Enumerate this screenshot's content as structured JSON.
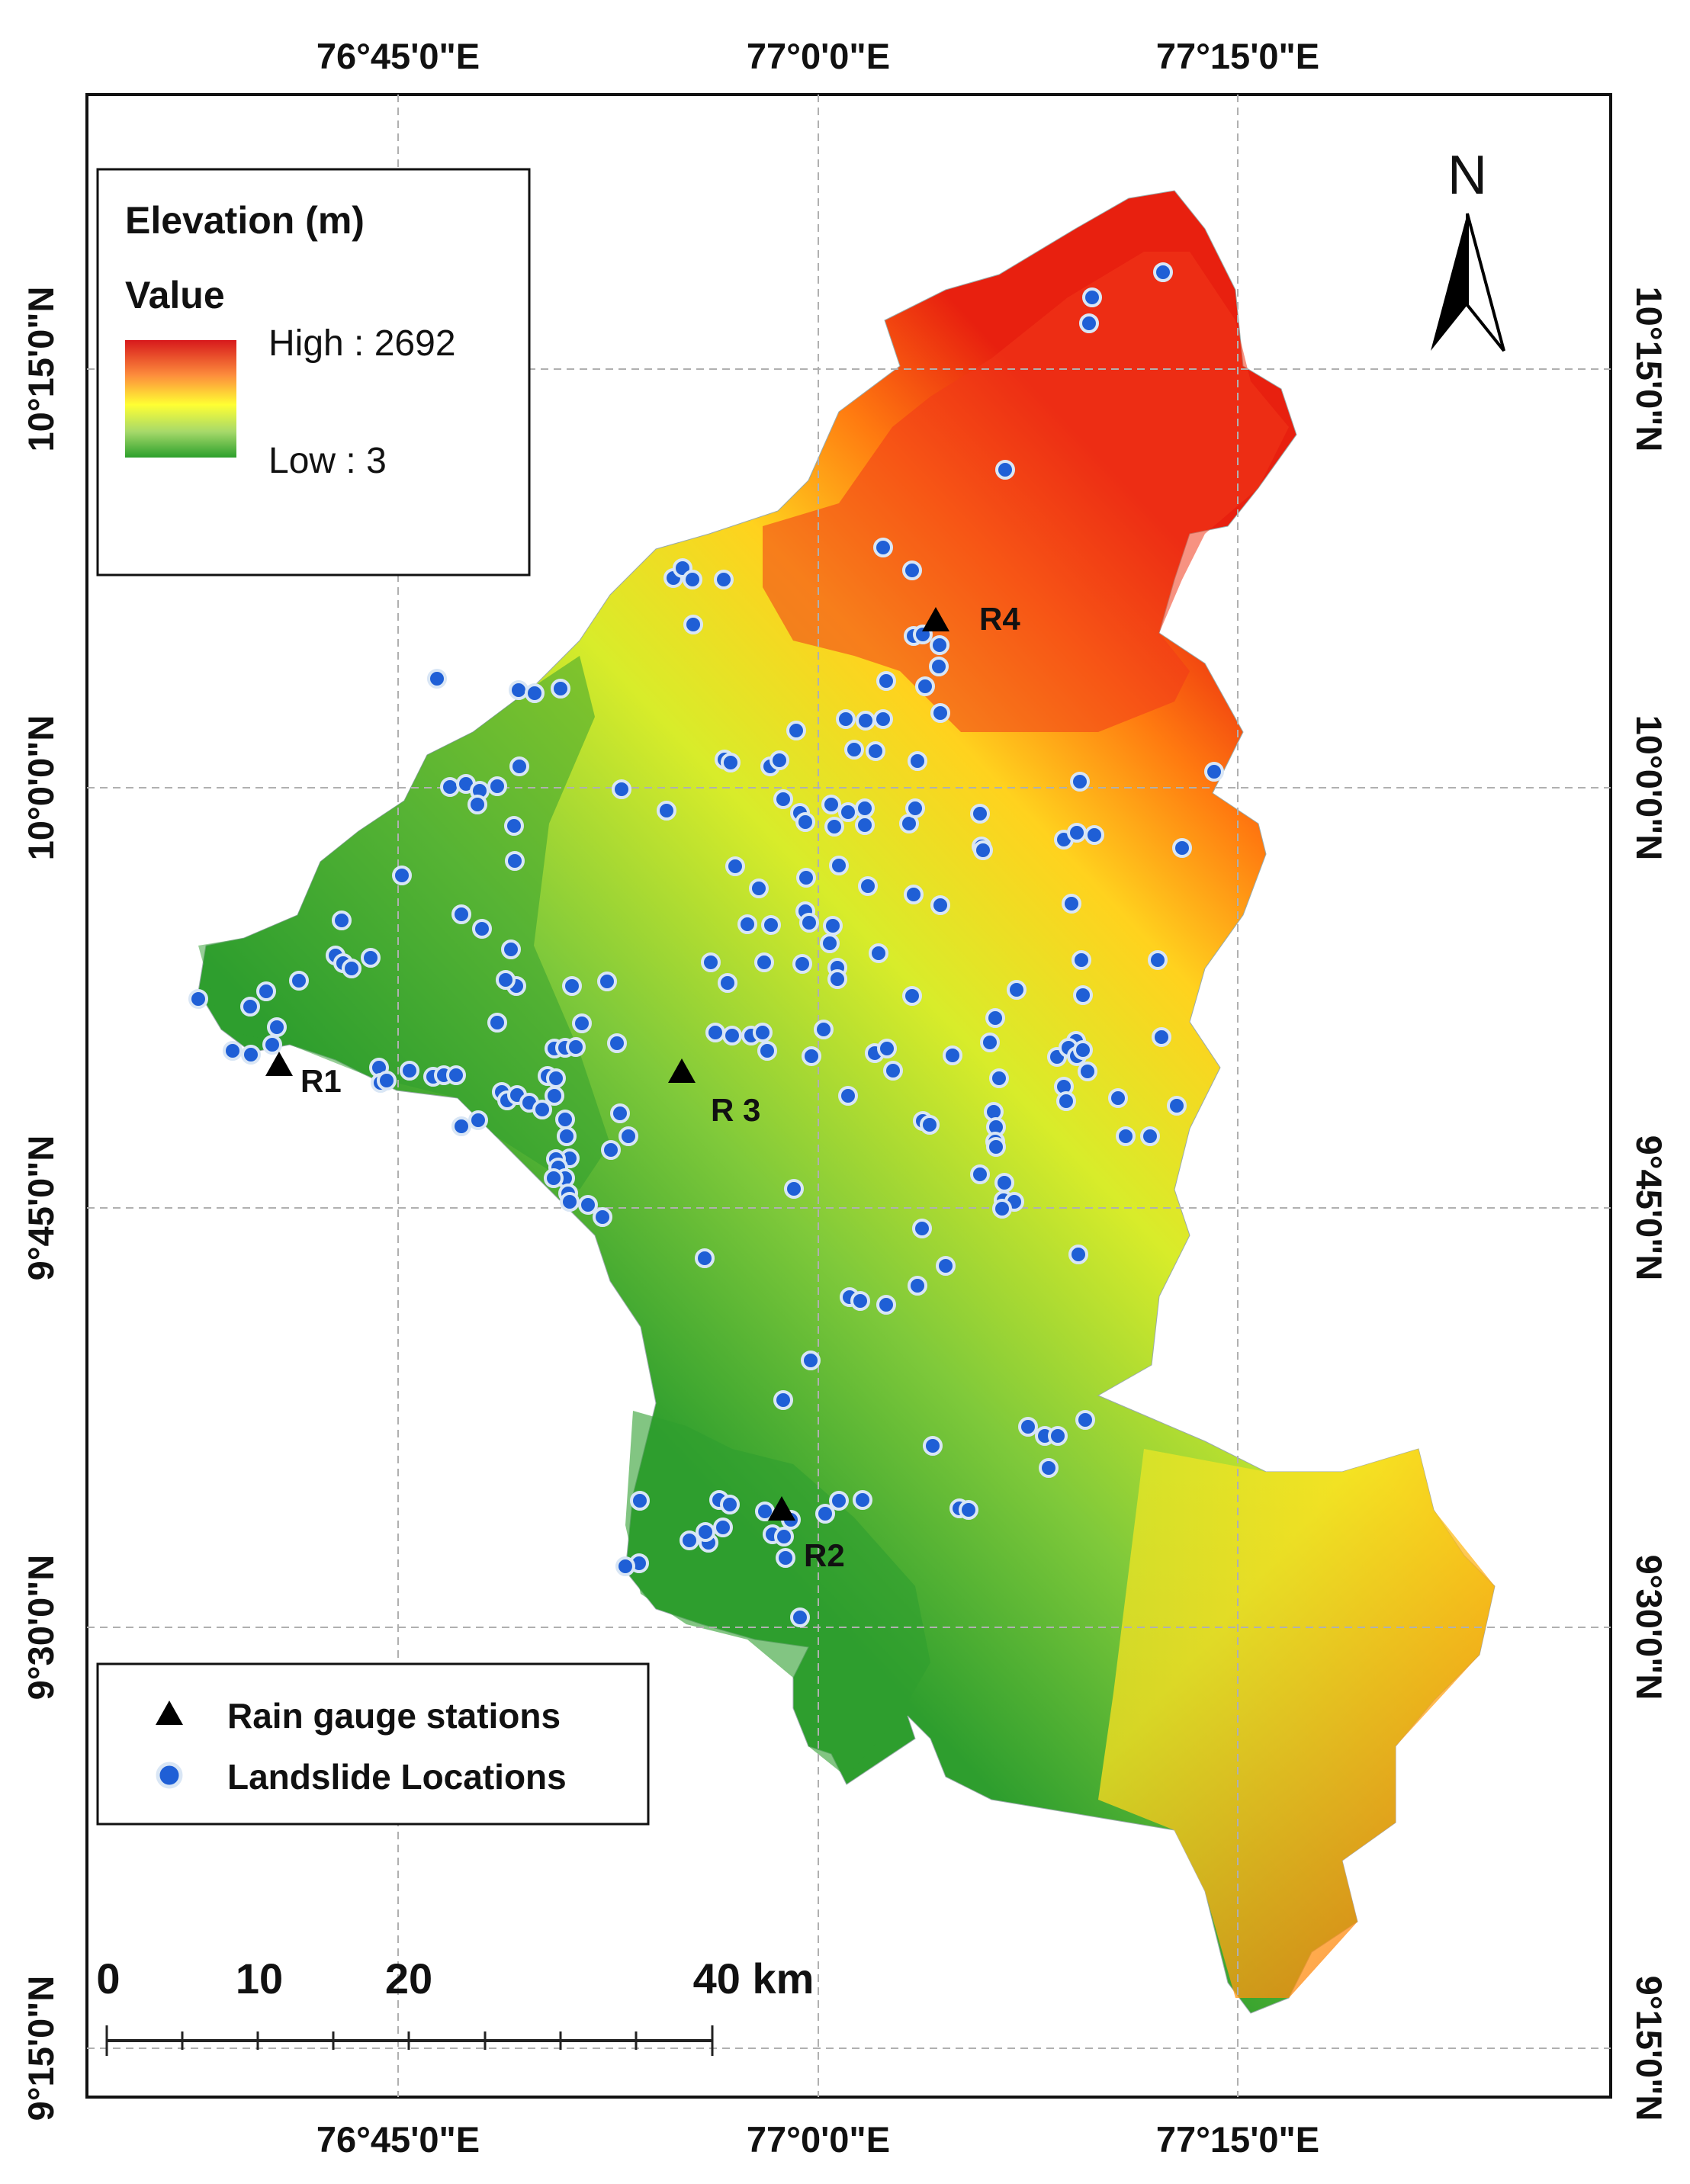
{
  "map": {
    "graticule": {
      "top_longitude_labels": [
        "76°45'0\"E",
        "77°0'0\"E",
        "77°15'0\"E"
      ],
      "bottom_longitude_labels": [
        "76°45'0\"E",
        "77°0'0\"E",
        "77°15'0\"E"
      ],
      "left_latitude_labels": [
        "10°15'0\"N",
        "10°0'0\"N",
        "9°45'0\"N",
        "9°30'0\"N",
        "9°15'0\"N"
      ],
      "right_latitude_labels": [
        "10°15'0\"N",
        "10°0'0\"N",
        "9°45'0\"N",
        "9°30'0\"N",
        "9°15'0\"N"
      ]
    },
    "elevation_legend": {
      "title": "Elevation (m)",
      "subtitle": "Value",
      "high_label": "High : 2692",
      "low_label": "Low : 3",
      "colors": [
        "#d7191c",
        "#fd8d3c",
        "#ffff33",
        "#a6d96a",
        "#2ca02c"
      ]
    },
    "symbols_legend": {
      "rain_gauge_label": "Rain gauge stations",
      "landslide_label": "Landslide Locations"
    },
    "north_arrow": {
      "label": "N"
    },
    "scale_bar": {
      "labels": [
        "0",
        "10",
        "20",
        "40 km"
      ]
    },
    "rain_gauge_stations": [
      {
        "name": "R1"
      },
      {
        "name": "R2"
      },
      {
        "name": "R 3"
      },
      {
        "name": "R4"
      }
    ],
    "colors": {
      "landslide_fill": "#1f5fd6",
      "landslide_stroke": "#d9e6f5",
      "gauge": "#000000",
      "grid": "#bbbbbb"
    }
  }
}
